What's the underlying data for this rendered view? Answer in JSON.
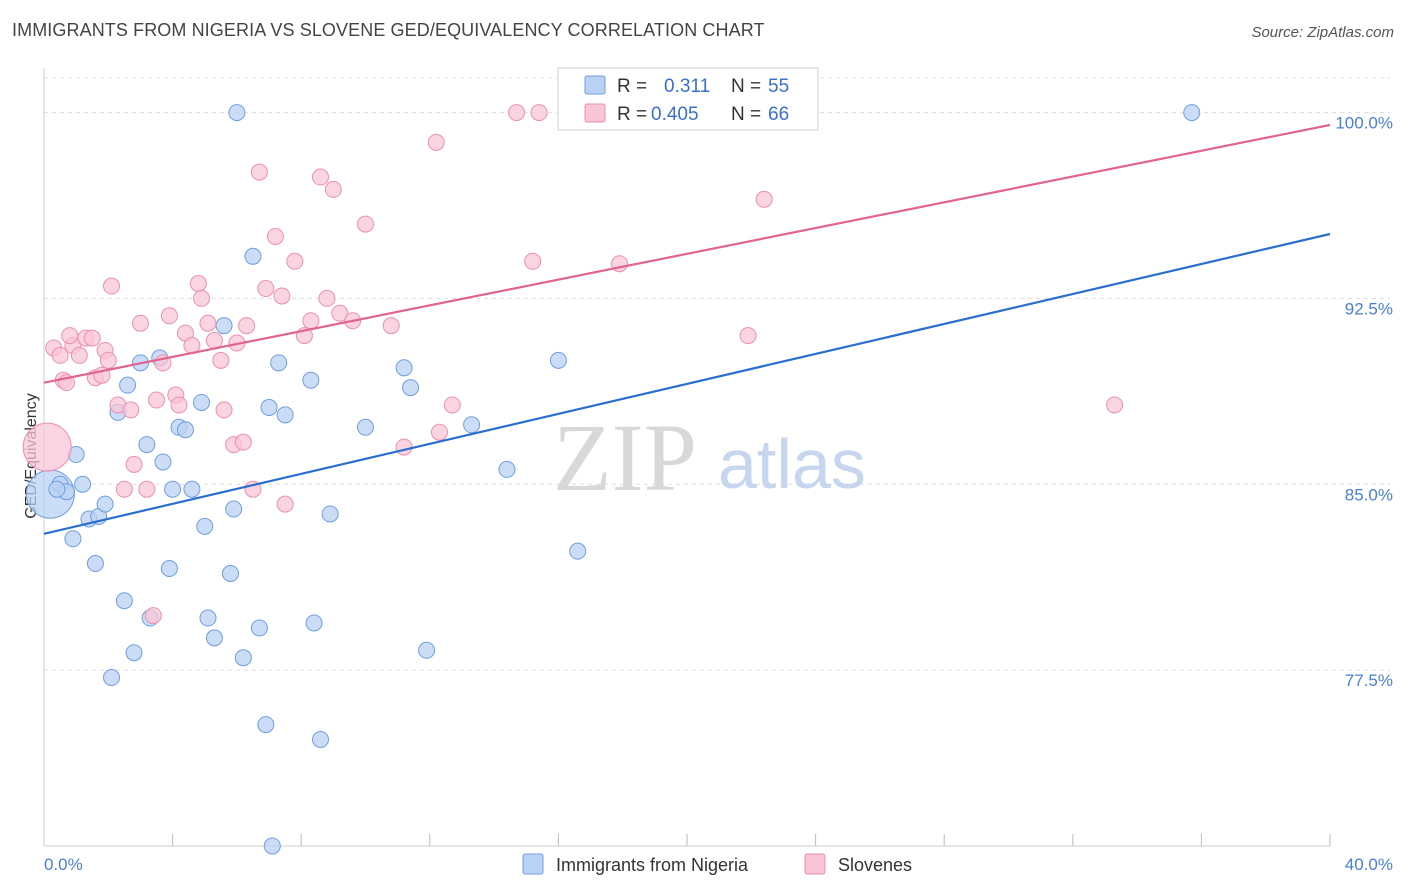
{
  "title": "IMMIGRANTS FROM NIGERIA VS SLOVENE GED/EQUIVALENCY CORRELATION CHART",
  "source": "Source: ZipAtlas.com",
  "watermark": {
    "zip": "ZIP",
    "atlas": "atlas"
  },
  "legend": {
    "r_label": "R =",
    "n_label": "N =",
    "rows": [
      {
        "r": "0.311",
        "n": "55"
      },
      {
        "r": "0.405",
        "n": "66"
      }
    ]
  },
  "colors": {
    "blue_fill": "#b9d1f3",
    "blue_stroke": "#6f9ee0",
    "blue_line": "#2b6fce",
    "pink_fill": "#f8c6d6",
    "pink_stroke": "#ec8fb0",
    "pink_line": "#e0648e",
    "tick_text": "#4a7fd1",
    "grid": "#dddddd"
  },
  "chart_data": {
    "type": "scatter",
    "title": "IMMIGRANTS FROM NIGERIA VS SLOVENE GED/EQUIVALENCY CORRELATION CHART",
    "xlabel": "",
    "ylabel": "GED/Equivalency",
    "xlim": [
      0,
      40
    ],
    "ylim": [
      70.4,
      101.8
    ],
    "x_tick_labels": [
      "0.0%",
      "40.0%"
    ],
    "y_ticks": [
      77.5,
      85.0,
      92.5,
      100.0
    ],
    "y_tick_labels": [
      "77.5%",
      "85.0%",
      "92.5%",
      "100.0%"
    ],
    "grid": true,
    "legend_placement": "bottom-center",
    "series": [
      {
        "name": "Immigrants from Nigeria",
        "color": "#6f9ee0",
        "trend": {
          "x": [
            0,
            40
          ],
          "y": [
            83.0,
            95.1
          ]
        },
        "points": [
          {
            "x": 0.2,
            "y": 84.6,
            "size": "large"
          },
          {
            "x": 0.5,
            "y": 85.0
          },
          {
            "x": 0.7,
            "y": 84.7
          },
          {
            "x": 0.9,
            "y": 82.8
          },
          {
            "x": 1.0,
            "y": 86.2
          },
          {
            "x": 1.2,
            "y": 85.0
          },
          {
            "x": 1.4,
            "y": 83.6
          },
          {
            "x": 1.6,
            "y": 81.8
          },
          {
            "x": 1.7,
            "y": 83.7
          },
          {
            "x": 1.9,
            "y": 84.2
          },
          {
            "x": 2.1,
            "y": 77.2
          },
          {
            "x": 2.3,
            "y": 87.9
          },
          {
            "x": 2.5,
            "y": 80.3
          },
          {
            "x": 2.6,
            "y": 89.0
          },
          {
            "x": 2.8,
            "y": 78.2
          },
          {
            "x": 3.0,
            "y": 89.9
          },
          {
            "x": 3.2,
            "y": 86.6
          },
          {
            "x": 3.3,
            "y": 79.6
          },
          {
            "x": 3.6,
            "y": 90.1
          },
          {
            "x": 3.7,
            "y": 85.9
          },
          {
            "x": 3.9,
            "y": 81.6
          },
          {
            "x": 4.0,
            "y": 84.8
          },
          {
            "x": 4.2,
            "y": 87.3
          },
          {
            "x": 4.4,
            "y": 87.2
          },
          {
            "x": 4.6,
            "y": 84.8
          },
          {
            "x": 4.9,
            "y": 88.3
          },
          {
            "x": 5.0,
            "y": 83.3
          },
          {
            "x": 5.1,
            "y": 79.6
          },
          {
            "x": 5.3,
            "y": 78.8
          },
          {
            "x": 5.6,
            "y": 91.4
          },
          {
            "x": 5.8,
            "y": 81.4
          },
          {
            "x": 5.9,
            "y": 84.0
          },
          {
            "x": 6.0,
            "y": 100.0
          },
          {
            "x": 6.2,
            "y": 78.0
          },
          {
            "x": 6.5,
            "y": 94.2
          },
          {
            "x": 6.7,
            "y": 79.2
          },
          {
            "x": 6.9,
            "y": 75.3
          },
          {
            "x": 7.0,
            "y": 88.1
          },
          {
            "x": 7.1,
            "y": 70.4
          },
          {
            "x": 7.3,
            "y": 89.9
          },
          {
            "x": 7.5,
            "y": 87.8
          },
          {
            "x": 8.3,
            "y": 89.2
          },
          {
            "x": 8.4,
            "y": 79.4
          },
          {
            "x": 8.6,
            "y": 74.7
          },
          {
            "x": 8.9,
            "y": 83.8
          },
          {
            "x": 10.0,
            "y": 87.3
          },
          {
            "x": 11.2,
            "y": 89.7
          },
          {
            "x": 11.4,
            "y": 88.9
          },
          {
            "x": 11.9,
            "y": 78.3
          },
          {
            "x": 13.3,
            "y": 87.4
          },
          {
            "x": 14.4,
            "y": 85.6
          },
          {
            "x": 16.0,
            "y": 90.0
          },
          {
            "x": 16.6,
            "y": 82.3
          },
          {
            "x": 35.7,
            "y": 100.0
          },
          {
            "x": 0.4,
            "y": 84.8
          }
        ]
      },
      {
        "name": "Slovenes",
        "color": "#ec8fb0",
        "trend": {
          "x": [
            0,
            40
          ],
          "y": [
            89.1,
            99.5
          ]
        },
        "points": [
          {
            "x": 0.1,
            "y": 86.5,
            "size": "large"
          },
          {
            "x": 0.3,
            "y": 90.5
          },
          {
            "x": 0.5,
            "y": 90.2
          },
          {
            "x": 0.6,
            "y": 89.2
          },
          {
            "x": 0.7,
            "y": 89.1
          },
          {
            "x": 0.9,
            "y": 90.6
          },
          {
            "x": 1.1,
            "y": 90.2
          },
          {
            "x": 1.3,
            "y": 90.9
          },
          {
            "x": 1.5,
            "y": 90.9
          },
          {
            "x": 1.6,
            "y": 89.3
          },
          {
            "x": 1.8,
            "y": 89.4
          },
          {
            "x": 1.9,
            "y": 90.4
          },
          {
            "x": 2.1,
            "y": 93.0
          },
          {
            "x": 2.3,
            "y": 88.2
          },
          {
            "x": 2.5,
            "y": 84.8
          },
          {
            "x": 2.7,
            "y": 88.0
          },
          {
            "x": 2.8,
            "y": 85.8
          },
          {
            "x": 3.0,
            "y": 91.5
          },
          {
            "x": 3.2,
            "y": 84.8
          },
          {
            "x": 3.4,
            "y": 79.7
          },
          {
            "x": 3.5,
            "y": 88.4
          },
          {
            "x": 3.7,
            "y": 89.9
          },
          {
            "x": 3.9,
            "y": 91.8
          },
          {
            "x": 4.1,
            "y": 88.6
          },
          {
            "x": 4.2,
            "y": 88.2
          },
          {
            "x": 4.4,
            "y": 91.1
          },
          {
            "x": 4.6,
            "y": 90.6
          },
          {
            "x": 4.8,
            "y": 93.1
          },
          {
            "x": 4.9,
            "y": 92.5
          },
          {
            "x": 5.1,
            "y": 91.5
          },
          {
            "x": 5.3,
            "y": 90.8
          },
          {
            "x": 5.5,
            "y": 90.0
          },
          {
            "x": 5.6,
            "y": 88.0
          },
          {
            "x": 5.9,
            "y": 86.6
          },
          {
            "x": 6.0,
            "y": 90.7
          },
          {
            "x": 6.2,
            "y": 86.7
          },
          {
            "x": 6.3,
            "y": 91.4
          },
          {
            "x": 6.7,
            "y": 97.6
          },
          {
            "x": 6.9,
            "y": 92.9
          },
          {
            "x": 7.2,
            "y": 95.0
          },
          {
            "x": 7.4,
            "y": 92.6
          },
          {
            "x": 7.5,
            "y": 84.2
          },
          {
            "x": 7.8,
            "y": 94.0
          },
          {
            "x": 8.1,
            "y": 91.0
          },
          {
            "x": 8.3,
            "y": 91.6
          },
          {
            "x": 8.6,
            "y": 97.4
          },
          {
            "x": 8.8,
            "y": 92.5
          },
          {
            "x": 9.0,
            "y": 96.9
          },
          {
            "x": 9.2,
            "y": 91.9
          },
          {
            "x": 9.6,
            "y": 91.6
          },
          {
            "x": 10.0,
            "y": 95.5
          },
          {
            "x": 10.8,
            "y": 91.4
          },
          {
            "x": 11.2,
            "y": 86.5
          },
          {
            "x": 12.2,
            "y": 98.8
          },
          {
            "x": 12.3,
            "y": 87.1
          },
          {
            "x": 12.7,
            "y": 88.2
          },
          {
            "x": 14.7,
            "y": 100.0
          },
          {
            "x": 15.2,
            "y": 94.0
          },
          {
            "x": 15.4,
            "y": 100.0
          },
          {
            "x": 17.9,
            "y": 93.9
          },
          {
            "x": 21.9,
            "y": 91.0
          },
          {
            "x": 22.4,
            "y": 96.5
          },
          {
            "x": 33.3,
            "y": 88.2
          },
          {
            "x": 6.5,
            "y": 84.8
          },
          {
            "x": 0.8,
            "y": 91.0
          },
          {
            "x": 2.0,
            "y": 90.0
          }
        ]
      }
    ]
  }
}
